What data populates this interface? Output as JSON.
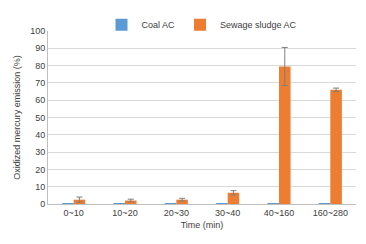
{
  "chart_data": {
    "type": "bar",
    "x_label": "Time (min)",
    "y_label": "Oxidized mercury emission (%)",
    "categories": [
      "0~10",
      "10~20",
      "20~30",
      "30~40",
      "40~160",
      "160~280"
    ],
    "series": [
      {
        "name": "Coal AC",
        "color": "#5b9bd5",
        "values": [
          0.1,
          0.1,
          0.1,
          0.1,
          0.1,
          0.1
        ]
      },
      {
        "name": "Sewage sludge AC",
        "color": "#ed7d31",
        "values": [
          2.5,
          2,
          2.5,
          6.5,
          79.5,
          66
        ],
        "errors": [
          1.5,
          0.8,
          0.8,
          1.2,
          11,
          1
        ]
      }
    ],
    "ylim": [
      0,
      100
    ],
    "yticks": [
      0,
      10,
      20,
      30,
      40,
      50,
      60,
      70,
      80,
      90,
      100
    ],
    "grid": true,
    "legend": "top"
  }
}
